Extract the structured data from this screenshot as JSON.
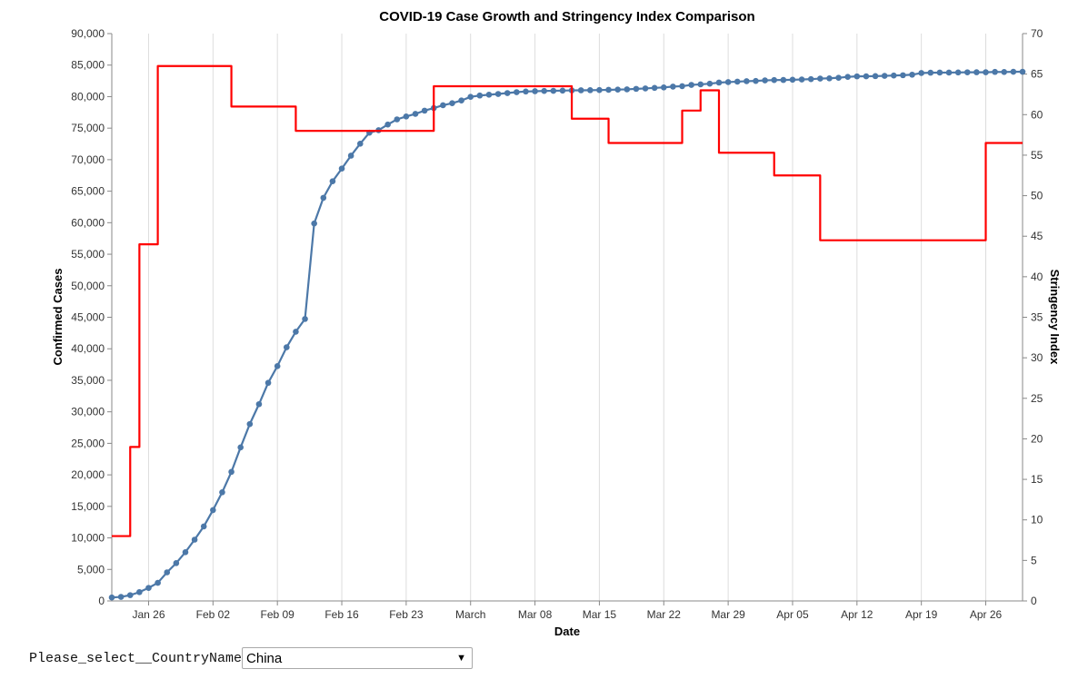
{
  "chart_data": {
    "type": "line",
    "title": "COVID-19 Case Growth and Stringency Index Comparison",
    "xlabel": "Date",
    "ylabel_left": "Confirmed Cases",
    "ylabel_right": "Stringency Index",
    "x_start": "2020-01-22",
    "x_end": "2020-04-30",
    "xlim": [
      "2020-01-22",
      "2020-04-30"
    ],
    "x_ticks": [
      {
        "date": "2020-01-26",
        "label": "Jan 26"
      },
      {
        "date": "2020-02-02",
        "label": "Feb 02"
      },
      {
        "date": "2020-02-09",
        "label": "Feb 09"
      },
      {
        "date": "2020-02-16",
        "label": "Feb 16"
      },
      {
        "date": "2020-02-23",
        "label": "Feb 23"
      },
      {
        "date": "2020-03-01",
        "label": "March"
      },
      {
        "date": "2020-03-08",
        "label": "Mar 08"
      },
      {
        "date": "2020-03-15",
        "label": "Mar 15"
      },
      {
        "date": "2020-03-22",
        "label": "Mar 22"
      },
      {
        "date": "2020-03-29",
        "label": "Mar 29"
      },
      {
        "date": "2020-04-05",
        "label": "Apr 05"
      },
      {
        "date": "2020-04-12",
        "label": "Apr 12"
      },
      {
        "date": "2020-04-19",
        "label": "Apr 19"
      },
      {
        "date": "2020-04-26",
        "label": "Apr 26"
      }
    ],
    "y_left": {
      "ylim": [
        0,
        90000
      ],
      "ticks": [
        0,
        5000,
        10000,
        15000,
        20000,
        25000,
        30000,
        35000,
        40000,
        45000,
        50000,
        55000,
        60000,
        65000,
        70000,
        75000,
        80000,
        85000,
        90000
      ],
      "tick_labels": [
        "0",
        "5,000",
        "10,000",
        "15,000",
        "20,000",
        "25,000",
        "30,000",
        "35,000",
        "40,000",
        "45,000",
        "50,000",
        "55,000",
        "60,000",
        "65,000",
        "70,000",
        "75,000",
        "80,000",
        "85,000",
        "90,000"
      ]
    },
    "y_right": {
      "ylim": [
        0,
        70
      ],
      "ticks": [
        0,
        5,
        10,
        15,
        20,
        25,
        30,
        35,
        40,
        45,
        50,
        55,
        60,
        65,
        70
      ]
    },
    "grid": "vertical",
    "series": [
      {
        "name": "Confirmed Cases",
        "axis": "left",
        "color": "#4c78a8",
        "markers": true,
        "values": [
          548,
          641,
          918,
          1401,
          2067,
          2869,
          4537,
          5997,
          7736,
          9720,
          11821,
          14411,
          17238,
          20471,
          24363,
          28060,
          31211,
          34598,
          37251,
          40235,
          42708,
          44730,
          59882,
          63951,
          66576,
          68584,
          70635,
          72528,
          74279,
          74675,
          75569,
          76392,
          76846,
          77262,
          77779,
          78190,
          78630,
          78959,
          79389,
          79968,
          80174,
          80302,
          80422,
          80565,
          80710,
          80813,
          80859,
          80904,
          80924,
          80955,
          80992,
          81003,
          81021,
          81048,
          81077,
          81116,
          81151,
          81235,
          81300,
          81385,
          81458,
          81592,
          81658,
          81862,
          81944,
          82049,
          82227,
          82302,
          82374,
          82446,
          82490,
          82574,
          82629,
          82640,
          82679,
          82718,
          82776,
          82862,
          82903,
          82993,
          83134,
          83213,
          83220,
          83253,
          83297,
          83347,
          83394,
          83481,
          83743,
          83793,
          83812,
          83817,
          83837,
          83859,
          83864,
          83864,
          83918,
          83908,
          83938,
          83948
        ]
      },
      {
        "name": "Stringency Index",
        "axis": "right",
        "color": "#ff0000",
        "markers": false,
        "values": [
          8,
          8,
          19,
          44,
          44,
          66,
          66,
          66,
          66,
          66,
          66,
          66,
          66,
          61,
          61,
          61,
          61,
          61,
          61,
          61,
          58,
          58,
          58,
          58,
          58,
          58,
          58,
          58,
          58,
          58,
          58,
          58,
          58,
          58,
          58,
          63.5,
          63.5,
          63.5,
          63.5,
          63.5,
          63.5,
          63.5,
          63.5,
          63.5,
          63.5,
          63.5,
          63.5,
          63.5,
          63.5,
          63.5,
          59.5,
          59.5,
          59.5,
          59.5,
          56.5,
          56.5,
          56.5,
          56.5,
          56.5,
          56.5,
          56.5,
          56.5,
          60.5,
          60.5,
          63,
          63,
          55.3,
          55.3,
          55.3,
          55.3,
          55.3,
          55.3,
          52.5,
          52.5,
          52.5,
          52.5,
          52.5,
          44.5,
          44.5,
          44.5,
          44.5,
          44.5,
          44.5,
          44.5,
          44.5,
          44.5,
          44.5,
          44.5,
          44.5,
          44.5,
          44.5,
          44.5,
          44.5,
          44.5,
          44.5,
          56.5,
          56.5,
          56.5,
          56.5,
          56.5
        ]
      }
    ]
  },
  "control": {
    "label": "Please_select__CountryName",
    "selected": "China"
  }
}
